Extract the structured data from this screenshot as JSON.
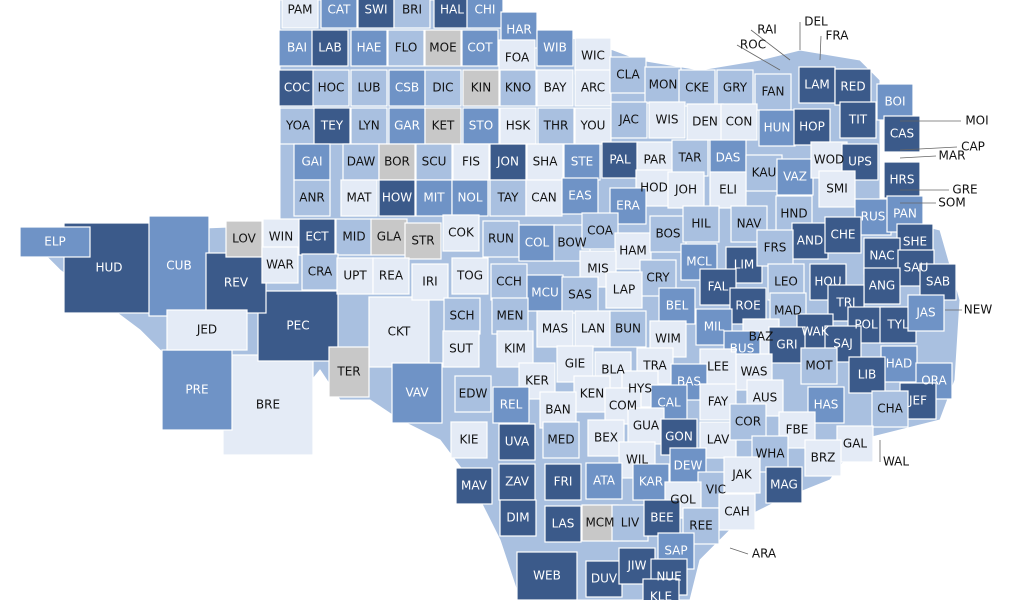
{
  "counties": [
    {
      "label": "PAM",
      "color": "#e4ebf6"
    },
    {
      "label": "CAT",
      "color": "#6f93c6"
    },
    {
      "label": "SWI",
      "color": "#3b5a8a"
    },
    {
      "label": "BRI",
      "color": "#a9c0e0"
    },
    {
      "label": "HAL",
      "color": "#3b5a8a"
    },
    {
      "label": "CHI",
      "color": "#6f93c6"
    },
    {
      "label": "HAR",
      "color": "#6f93c6"
    },
    {
      "label": "BAI",
      "color": "#6f93c6"
    },
    {
      "label": "LAB",
      "color": "#3b5a8a"
    },
    {
      "label": "HAE",
      "color": "#6f93c6"
    },
    {
      "label": "FLO",
      "color": "#a9c0e0"
    },
    {
      "label": "MOE",
      "color": "#c8c8c8"
    },
    {
      "label": "COT",
      "color": "#6f93c6"
    },
    {
      "label": "FOA",
      "color": "#e4ebf6"
    },
    {
      "label": "WIB",
      "color": "#6f93c6"
    },
    {
      "label": "WIC",
      "color": "#e4ebf6"
    },
    {
      "label": "COC",
      "color": "#3b5a8a"
    },
    {
      "label": "HOC",
      "color": "#a9c0e0"
    },
    {
      "label": "LUB",
      "color": "#a9c0e0"
    },
    {
      "label": "CSB",
      "color": "#6f93c6"
    },
    {
      "label": "DIC",
      "color": "#a9c0e0"
    },
    {
      "label": "KIN",
      "color": "#c8c8c8"
    },
    {
      "label": "KNO",
      "color": "#a9c0e0"
    },
    {
      "label": "BAY",
      "color": "#e4ebf6"
    },
    {
      "label": "ARC",
      "color": "#e4ebf6"
    },
    {
      "label": "CLA",
      "color": "#a9c0e0"
    },
    {
      "label": "MON",
      "color": "#a9c0e0"
    },
    {
      "label": "CKE",
      "color": "#a9c0e0"
    },
    {
      "label": "GRY",
      "color": "#a9c0e0"
    },
    {
      "label": "FAN",
      "color": "#a9c0e0"
    },
    {
      "label": "LAM",
      "color": "#3b5a8a"
    },
    {
      "label": "RED",
      "color": "#3b5a8a"
    },
    {
      "label": "BOI",
      "color": "#6f93c6"
    },
    {
      "label": "YOA",
      "color": "#a9c0e0"
    },
    {
      "label": "TEY",
      "color": "#3b5a8a"
    },
    {
      "label": "LYN",
      "color": "#a9c0e0"
    },
    {
      "label": "GAR",
      "color": "#6f93c6"
    },
    {
      "label": "KET",
      "color": "#c8c8c8"
    },
    {
      "label": "STO",
      "color": "#6f93c6"
    },
    {
      "label": "HSK",
      "color": "#e4ebf6"
    },
    {
      "label": "THR",
      "color": "#a9c0e0"
    },
    {
      "label": "YOU",
      "color": "#e4ebf6"
    },
    {
      "label": "JAC",
      "color": "#a9c0e0"
    },
    {
      "label": "WIS",
      "color": "#e4ebf6"
    },
    {
      "label": "DEN",
      "color": "#e4ebf6"
    },
    {
      "label": "CON",
      "color": "#e4ebf6"
    },
    {
      "label": "HUN",
      "color": "#6f93c6"
    },
    {
      "label": "HOP",
      "color": "#3b5a8a"
    },
    {
      "label": "TIT",
      "color": "#3b5a8a"
    },
    {
      "label": "CAS",
      "color": "#3b5a8a"
    },
    {
      "label": "GAI",
      "color": "#6f93c6"
    },
    {
      "label": "DAW",
      "color": "#a9c0e0"
    },
    {
      "label": "BOR",
      "color": "#c8c8c8"
    },
    {
      "label": "SCU",
      "color": "#a9c0e0"
    },
    {
      "label": "FIS",
      "color": "#e4ebf6"
    },
    {
      "label": "JON",
      "color": "#3b5a8a"
    },
    {
      "label": "SHA",
      "color": "#e4ebf6"
    },
    {
      "label": "STE",
      "color": "#6f93c6"
    },
    {
      "label": "PAL",
      "color": "#3b5a8a"
    },
    {
      "label": "PAR",
      "color": "#e4ebf6"
    },
    {
      "label": "TAR",
      "color": "#a9c0e0"
    },
    {
      "label": "DAS",
      "color": "#6f93c6"
    },
    {
      "label": "KAU",
      "color": "#a9c0e0"
    },
    {
      "label": "VAZ",
      "color": "#6f93c6"
    },
    {
      "label": "WOD",
      "color": "#e4ebf6"
    },
    {
      "label": "UPS",
      "color": "#3b5a8a"
    },
    {
      "label": "HRS",
      "color": "#3b5a8a"
    },
    {
      "label": "ANR",
      "color": "#a9c0e0"
    },
    {
      "label": "MAT",
      "color": "#e4ebf6"
    },
    {
      "label": "HOW",
      "color": "#3b5a8a"
    },
    {
      "label": "MIT",
      "color": "#6f93c6"
    },
    {
      "label": "NOL",
      "color": "#6f93c6"
    },
    {
      "label": "TAY",
      "color": "#a9c0e0"
    },
    {
      "label": "CAN",
      "color": "#e4ebf6"
    },
    {
      "label": "EAS",
      "color": "#6f93c6"
    },
    {
      "label": "HOD",
      "color": "#e4ebf6"
    },
    {
      "label": "JOH",
      "color": "#e4ebf6"
    },
    {
      "label": "ELI",
      "color": "#e4ebf6"
    },
    {
      "label": "SMI",
      "color": "#e4ebf6"
    },
    {
      "label": "ERA",
      "color": "#6f93c6"
    },
    {
      "label": "RUS",
      "color": "#6f93c6"
    },
    {
      "label": "PAN",
      "color": "#6f93c6"
    },
    {
      "label": "ELP",
      "color": "#6f93c6"
    },
    {
      "label": "LOV",
      "color": "#c8c8c8"
    },
    {
      "label": "WIN",
      "color": "#e4ebf6"
    },
    {
      "label": "ECT",
      "color": "#3b5a8a"
    },
    {
      "label": "MID",
      "color": "#a9c0e0"
    },
    {
      "label": "GLA",
      "color": "#c8c8c8"
    },
    {
      "label": "STR",
      "color": "#c8c8c8"
    },
    {
      "label": "COK",
      "color": "#e4ebf6"
    },
    {
      "label": "RUN",
      "color": "#a9c0e0"
    },
    {
      "label": "COL",
      "color": "#6f93c6"
    },
    {
      "label": "BOW",
      "color": "#a9c0e0"
    },
    {
      "label": "COA",
      "color": "#a9c0e0"
    },
    {
      "label": "HAM",
      "color": "#e4ebf6"
    },
    {
      "label": "BOS",
      "color": "#a9c0e0"
    },
    {
      "label": "HIL",
      "color": "#a9c0e0"
    },
    {
      "label": "NAV",
      "color": "#a9c0e0"
    },
    {
      "label": "HND",
      "color": "#a9c0e0"
    },
    {
      "label": "AND",
      "color": "#3b5a8a"
    },
    {
      "label": "CHE",
      "color": "#3b5a8a"
    },
    {
      "label": "SHE",
      "color": "#3b5a8a"
    },
    {
      "label": "HUD",
      "color": "#3b5a8a"
    },
    {
      "label": "CUB",
      "color": "#6f93c6"
    },
    {
      "label": "REV",
      "color": "#3b5a8a"
    },
    {
      "label": "WAR",
      "color": "#e4ebf6"
    },
    {
      "label": "CRA",
      "color": "#a9c0e0"
    },
    {
      "label": "UPT",
      "color": "#e4ebf6"
    },
    {
      "label": "REA",
      "color": "#e4ebf6"
    },
    {
      "label": "IRI",
      "color": "#e4ebf6"
    },
    {
      "label": "TOG",
      "color": "#e4ebf6"
    },
    {
      "label": "CCH",
      "color": "#a9c0e0"
    },
    {
      "label": "MIS",
      "color": "#e4ebf6"
    },
    {
      "label": "CRY",
      "color": "#a9c0e0"
    },
    {
      "label": "MCL",
      "color": "#6f93c6"
    },
    {
      "label": "LIM",
      "color": "#3b5a8a"
    },
    {
      "label": "FRS",
      "color": "#a9c0e0"
    },
    {
      "label": "LEO",
      "color": "#a9c0e0"
    },
    {
      "label": "NAC",
      "color": "#3b5a8a"
    },
    {
      "label": "SAU",
      "color": "#3b5a8a"
    },
    {
      "label": "SAB",
      "color": "#3b5a8a"
    },
    {
      "label": "HOU",
      "color": "#3b5a8a"
    },
    {
      "label": "ANG",
      "color": "#3b5a8a"
    },
    {
      "label": "LAP",
      "color": "#e4ebf6"
    },
    {
      "label": "FAL",
      "color": "#3b5a8a"
    },
    {
      "label": "MCU",
      "color": "#6f93c6"
    },
    {
      "label": "SAS",
      "color": "#a9c0e0"
    },
    {
      "label": "JED",
      "color": "#e4ebf6"
    },
    {
      "label": "PEC",
      "color": "#3b5a8a"
    },
    {
      "label": "CKT",
      "color": "#e4ebf6"
    },
    {
      "label": "SCH",
      "color": "#a9c0e0"
    },
    {
      "label": "MEN",
      "color": "#a9c0e0"
    },
    {
      "label": "MAS",
      "color": "#e4ebf6"
    },
    {
      "label": "LAN",
      "color": "#e4ebf6"
    },
    {
      "label": "BUN",
      "color": "#a9c0e0"
    },
    {
      "label": "BEL",
      "color": "#6f93c6"
    },
    {
      "label": "ROE",
      "color": "#3b5a8a"
    },
    {
      "label": "MAD",
      "color": "#a9c0e0"
    },
    {
      "label": "TRI",
      "color": "#3b5a8a"
    },
    {
      "label": "WAK",
      "color": "#3b5a8a"
    },
    {
      "label": "POL",
      "color": "#3b5a8a"
    },
    {
      "label": "TYL",
      "color": "#3b5a8a"
    },
    {
      "label": "JAS",
      "color": "#6f93c6"
    },
    {
      "label": "MIL",
      "color": "#6f93c6"
    },
    {
      "label": "WIM",
      "color": "#e4ebf6"
    },
    {
      "label": "BAZ",
      "color": "#e4ebf6"
    },
    {
      "label": "GRI",
      "color": "#3b5a8a"
    },
    {
      "label": "SAJ",
      "color": "#3b5a8a"
    },
    {
      "label": "BUS",
      "color": "#6f93c6"
    },
    {
      "label": "SUT",
      "color": "#e4ebf6"
    },
    {
      "label": "KIM",
      "color": "#e4ebf6"
    },
    {
      "label": "GIE",
      "color": "#e4ebf6"
    },
    {
      "label": "TRA",
      "color": "#e4ebf6"
    },
    {
      "label": "LEE",
      "color": "#e4ebf6"
    },
    {
      "label": "MOT",
      "color": "#a9c0e0"
    },
    {
      "label": "HAD",
      "color": "#6f93c6"
    },
    {
      "label": "LIB",
      "color": "#3b5a8a"
    },
    {
      "label": "ORA",
      "color": "#6f93c6"
    },
    {
      "label": "WAS",
      "color": "#e4ebf6"
    },
    {
      "label": "PRE",
      "color": "#6f93c6"
    },
    {
      "label": "TER",
      "color": "#c8c8c8"
    },
    {
      "label": "VAV",
      "color": "#6f93c6"
    },
    {
      "label": "EDW",
      "color": "#a9c0e0"
    },
    {
      "label": "BLA",
      "color": "#e4ebf6"
    },
    {
      "label": "KER",
      "color": "#e4ebf6"
    },
    {
      "label": "HYS",
      "color": "#e4ebf6"
    },
    {
      "label": "BAS",
      "color": "#6f93c6"
    },
    {
      "label": "KEN",
      "color": "#e4ebf6"
    },
    {
      "label": "AUS",
      "color": "#e4ebf6"
    },
    {
      "label": "JEF",
      "color": "#3b5a8a"
    },
    {
      "label": "CHA",
      "color": "#a9c0e0"
    },
    {
      "label": "HAS",
      "color": "#6f93c6"
    },
    {
      "label": "BRE",
      "color": "#e4ebf6"
    },
    {
      "label": "REL",
      "color": "#6f93c6"
    },
    {
      "label": "BAN",
      "color": "#e4ebf6"
    },
    {
      "label": "COM",
      "color": "#e4ebf6"
    },
    {
      "label": "CAL",
      "color": "#6f93c6"
    },
    {
      "label": "FAY",
      "color": "#e4ebf6"
    },
    {
      "label": "GUA",
      "color": "#e4ebf6"
    },
    {
      "label": "UVA",
      "color": "#3b5a8a"
    },
    {
      "label": "MED",
      "color": "#a9c0e0"
    },
    {
      "label": "BEX",
      "color": "#e4ebf6"
    },
    {
      "label": "GON",
      "color": "#3b5a8a"
    },
    {
      "label": "LAV",
      "color": "#e4ebf6"
    },
    {
      "label": "COR",
      "color": "#a9c0e0"
    },
    {
      "label": "FBE",
      "color": "#e4ebf6"
    },
    {
      "label": "GAL",
      "color": "#e4ebf6"
    },
    {
      "label": "KIE",
      "color": "#e4ebf6"
    },
    {
      "label": "WIL",
      "color": "#e4ebf6"
    },
    {
      "label": "DEW",
      "color": "#6f93c6"
    },
    {
      "label": "WHA",
      "color": "#a9c0e0"
    },
    {
      "label": "BRZ",
      "color": "#e4ebf6"
    },
    {
      "label": "MAV",
      "color": "#3b5a8a"
    },
    {
      "label": "ZAV",
      "color": "#3b5a8a"
    },
    {
      "label": "FRI",
      "color": "#3b5a8a"
    },
    {
      "label": "ATA",
      "color": "#6f93c6"
    },
    {
      "label": "KAR",
      "color": "#6f93c6"
    },
    {
      "label": "VIC",
      "color": "#a9c0e0"
    },
    {
      "label": "JAK",
      "color": "#e4ebf6"
    },
    {
      "label": "MAG",
      "color": "#3b5a8a"
    },
    {
      "label": "GOL",
      "color": "#e4ebf6"
    },
    {
      "label": "CAH",
      "color": "#e4ebf6"
    },
    {
      "label": "DIM",
      "color": "#3b5a8a"
    },
    {
      "label": "LAS",
      "color": "#3b5a8a"
    },
    {
      "label": "MCM",
      "color": "#c8c8c8"
    },
    {
      "label": "LIV",
      "color": "#a9c0e0"
    },
    {
      "label": "BEE",
      "color": "#3b5a8a"
    },
    {
      "label": "REE",
      "color": "#a9c0e0"
    },
    {
      "label": "SAP",
      "color": "#6f93c6"
    },
    {
      "label": "WEB",
      "color": "#3b5a8a"
    },
    {
      "label": "DUV",
      "color": "#3b5a8a"
    },
    {
      "label": "JIW",
      "color": "#3b5a8a"
    },
    {
      "label": "NUE",
      "color": "#3b5a8a"
    },
    {
      "label": "KLE",
      "color": "#3b5a8a"
    }
  ],
  "callouts": [
    "RAI",
    "ROC",
    "DEL",
    "FRA",
    "MOI",
    "CAP",
    "MAR",
    "GRE",
    "SOM",
    "NEW",
    "WAL",
    "ARA"
  ]
}
